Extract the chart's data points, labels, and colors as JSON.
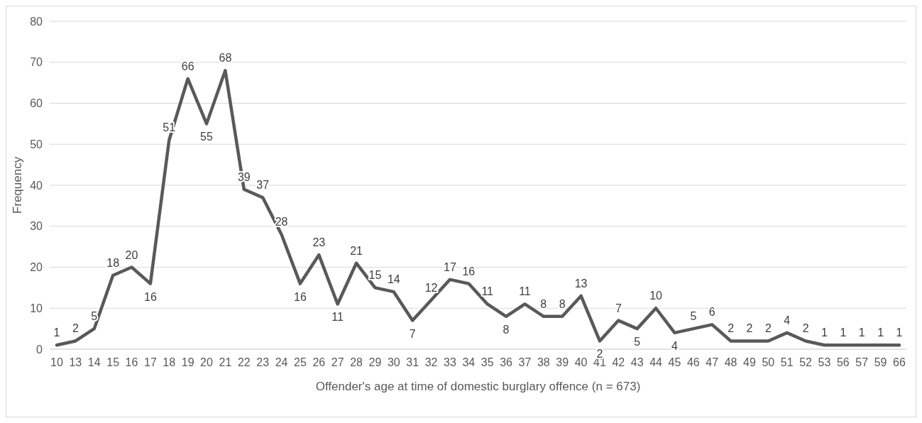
{
  "chart_data": {
    "type": "line",
    "xlabel": "Offender's age at time of domestic burglary offence (n = 673)",
    "ylabel": "Frequency",
    "categories": [
      "10",
      "13",
      "14",
      "15",
      "16",
      "17",
      "18",
      "19",
      "20",
      "21",
      "22",
      "23",
      "24",
      "25",
      "26",
      "27",
      "28",
      "29",
      "30",
      "31",
      "32",
      "33",
      "34",
      "35",
      "36",
      "37",
      "38",
      "39",
      "40",
      "41",
      "42",
      "43",
      "44",
      "45",
      "46",
      "47",
      "48",
      "49",
      "50",
      "51",
      "52",
      "53",
      "56",
      "57",
      "59",
      "66"
    ],
    "series": [
      {
        "color": "#595959",
        "values": [
          1,
          2,
          5,
          18,
          20,
          16,
          51,
          66,
          55,
          68,
          39,
          37,
          28,
          16,
          23,
          11,
          21,
          15,
          14,
          7,
          12,
          17,
          16,
          11,
          8,
          11,
          8,
          8,
          13,
          2,
          7,
          5,
          10,
          4,
          5,
          6,
          2,
          2,
          2,
          4,
          2,
          1,
          1,
          1,
          1,
          1
        ]
      }
    ],
    "ylim": [
      0,
      80
    ],
    "yticks": [
      0,
      10,
      20,
      30,
      40,
      50,
      60,
      70,
      80
    ],
    "grid": "y",
    "data_labels": true,
    "marker": "none",
    "line_style": "solid"
  }
}
